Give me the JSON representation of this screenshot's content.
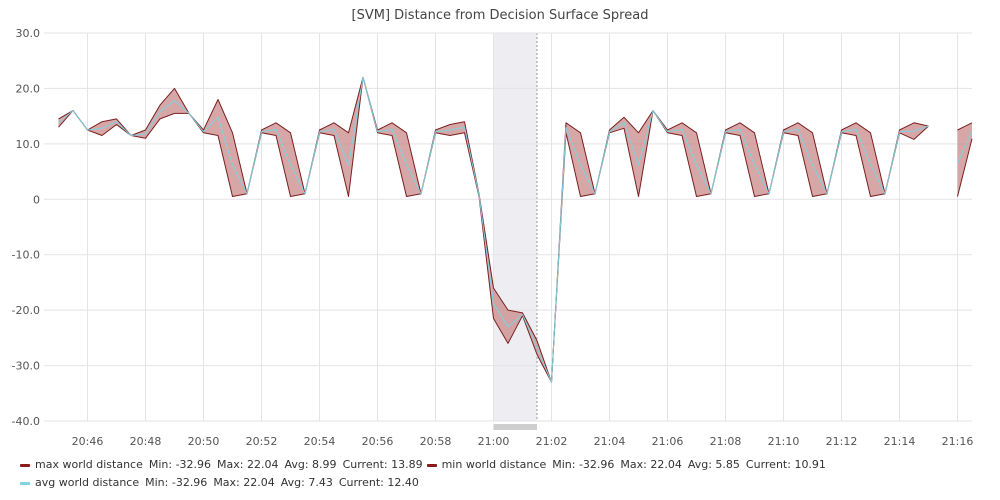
{
  "chart_data": {
    "type": "area",
    "title": "[SVM] Distance from Decision Surface Spread",
    "xlabel": "",
    "ylabel": "",
    "ylim": [
      -40,
      30
    ],
    "yticks": [
      "30.0",
      "20.0",
      "10.0",
      "0",
      "-10.0",
      "-20.0",
      "-30.0",
      "-40.0"
    ],
    "ytick_values": [
      30,
      20,
      10,
      0,
      -10,
      -20,
      -30,
      -40
    ],
    "xticks": [
      "20:46",
      "20:48",
      "20:50",
      "20:52",
      "20:54",
      "20:56",
      "20:58",
      "21:00",
      "21:02",
      "21:04",
      "21:06",
      "21:08",
      "21:10",
      "21:12",
      "21:14",
      "21:16"
    ],
    "grid": true,
    "x": [
      "20:45.0",
      "20:45.5",
      "20:46.0",
      "20:46.5",
      "20:47.0",
      "20:47.5",
      "20:48.0",
      "20:48.5",
      "20:49.0",
      "20:49.5",
      "20:50.0",
      "20:50.5",
      "20:51.0",
      "20:51.5",
      "20:52.0",
      "20:52.5",
      "20:53.0",
      "20:53.5",
      "20:54.0",
      "20:54.5",
      "20:55.0",
      "20:55.5",
      "20:56.0",
      "20:56.5",
      "20:57.0",
      "20:57.5",
      "20:58.0",
      "20:58.5",
      "20:59.0",
      "20:59.5",
      "21:00.0",
      "21:00.5",
      "21:01.0",
      "21:01.5",
      "21:02.0",
      "21:02.5",
      "21:03.0",
      "21:03.5",
      "21:04.0",
      "21:04.5",
      "21:05.0",
      "21:05.5",
      "21:06.0",
      "21:06.5",
      "21:07.0",
      "21:07.5",
      "21:08.0",
      "21:08.5",
      "21:09.0",
      "21:09.5",
      "21:10.0",
      "21:10.5",
      "21:11.0",
      "21:11.5",
      "21:12.0",
      "21:12.5",
      "21:13.0",
      "21:13.5",
      "21:14.0",
      "21:14.5",
      "21:15.0",
      "21:15.5",
      "21:16.0",
      "21:16.5"
    ],
    "series": [
      {
        "name": "max world distance",
        "color": "#7a1f1f",
        "values": [
          14.5,
          16.0,
          12.5,
          14.0,
          14.5,
          11.5,
          12.5,
          17.0,
          20.0,
          15.5,
          12.5,
          18.0,
          12.0,
          1.0,
          12.5,
          13.8,
          12.0,
          1.0,
          12.5,
          13.8,
          12.0,
          22.0,
          12.5,
          13.8,
          12.0,
          1.0,
          12.5,
          13.5,
          14.0,
          1.0,
          -16.0,
          -20.0,
          -20.5,
          -25.5,
          -33.0,
          13.8,
          12.0,
          1.0,
          12.5,
          14.8,
          12.0,
          16.0,
          12.5,
          13.8,
          12.0,
          1.0,
          12.5,
          13.8,
          12.0,
          1.0,
          12.5,
          13.8,
          12.0,
          1.0,
          12.5,
          13.8,
          12.0,
          1.0,
          12.5,
          13.8,
          13.2,
          null,
          12.5,
          13.8
        ]
      },
      {
        "name": "min world distance",
        "color": "#7a1f1f",
        "values": [
          13.0,
          16.0,
          12.5,
          11.5,
          13.5,
          11.5,
          11.0,
          14.5,
          15.5,
          15.5,
          12.0,
          11.5,
          0.5,
          1.0,
          12.0,
          11.5,
          0.5,
          1.0,
          12.0,
          11.5,
          0.5,
          22.0,
          12.0,
          11.5,
          0.5,
          1.0,
          12.0,
          11.5,
          12.0,
          0.5,
          -21.5,
          -26.0,
          -21.0,
          -28.0,
          -33.0,
          12.0,
          0.5,
          1.0,
          12.0,
          12.8,
          0.5,
          16.0,
          12.0,
          11.5,
          0.5,
          1.0,
          12.0,
          11.5,
          0.5,
          1.0,
          12.0,
          11.5,
          0.5,
          1.0,
          12.0,
          11.5,
          0.5,
          1.0,
          12.0,
          10.8,
          13.2,
          null,
          0.5,
          10.91
        ]
      },
      {
        "name": "avg world distance",
        "color": "#7dd3e0",
        "values": [
          13.8,
          16.0,
          12.5,
          12.8,
          14.0,
          11.5,
          11.8,
          15.8,
          17.8,
          15.5,
          12.2,
          14.8,
          6.2,
          1.0,
          12.2,
          12.6,
          6.2,
          1.0,
          12.2,
          12.6,
          6.2,
          22.0,
          12.2,
          12.6,
          6.2,
          1.0,
          12.2,
          12.5,
          13.0,
          0.8,
          -18.8,
          -23.0,
          -20.8,
          -26.8,
          -33.0,
          12.9,
          6.2,
          1.0,
          12.2,
          13.8,
          6.2,
          16.0,
          12.2,
          12.6,
          6.2,
          1.0,
          12.2,
          12.6,
          6.2,
          1.0,
          12.2,
          12.6,
          6.2,
          1.0,
          12.2,
          12.6,
          6.2,
          1.0,
          12.2,
          12.3,
          13.2,
          null,
          6.5,
          12.4
        ]
      }
    ],
    "highlight_range": [
      "21:00",
      "21:01.5"
    ],
    "legend": {
      "placement": "bottom",
      "rows": [
        [
          {
            "color": "#8b1a1a",
            "name": "max world distance",
            "min": "Min: -32.96",
            "max": "Max: 22.04",
            "avg": "Avg: 8.99",
            "current": "Current: 13.89"
          },
          {
            "color": "#8b1a1a",
            "name": "min world distance",
            "min": "Min: -32.96",
            "max": "Max: 22.04",
            "avg": "Avg: 5.85",
            "current": "Current: 10.91"
          }
        ],
        [
          {
            "color": "#7dd3e0",
            "name": "avg world distance",
            "min": "Min: -32.96",
            "max": "Max: 22.04",
            "avg": "Avg: 7.43",
            "current": "Current: 12.40"
          }
        ]
      ]
    }
  }
}
